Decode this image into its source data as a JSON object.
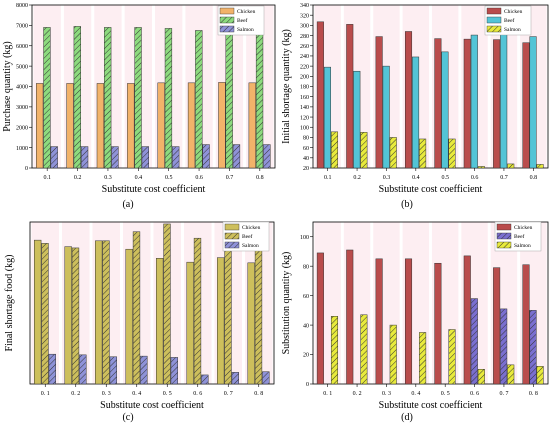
{
  "colors": {
    "chicken": "#f2b36a",
    "chicken_alt": "#cdbf5c",
    "beef": "#8ddb7e",
    "beef_alt": "#b94c4c",
    "salmon": "#8f92d8",
    "salmon_alt": "#e8ea3c",
    "sat_a": "#7a6fd0",
    "sat_b": "#53c4d6"
  },
  "chart_data": [
    {
      "id": "a",
      "type": "bar",
      "panel_label": "(a)",
      "title": "",
      "xlabel": "Substitute cost coefficient",
      "ylabel": "Purchase quantity (kg)",
      "ylim": [
        0,
        8000
      ],
      "yticks": [
        "0",
        "1000",
        "2000",
        "3000",
        "4000",
        "5000",
        "6000",
        "7000",
        "8000"
      ],
      "categories": [
        "0.1",
        "0.2",
        "0.3",
        "0.4",
        "0.5",
        "0.6",
        "0.7",
        "0.8"
      ],
      "legend_position": "top-right",
      "grid": false,
      "series": [
        {
          "name": "Chicken",
          "values": [
            4150,
            4150,
            4150,
            4150,
            4180,
            4180,
            4200,
            4180
          ]
        },
        {
          "name": "Beef",
          "values": [
            6900,
            6950,
            6900,
            6900,
            6850,
            6750,
            6750,
            6750
          ]
        },
        {
          "name": "Salmon",
          "values": [
            1050,
            1050,
            1050,
            1050,
            1050,
            1150,
            1150,
            1150
          ]
        }
      ]
    },
    {
      "id": "b",
      "type": "bar",
      "panel_label": "(b)",
      "title": "",
      "xlabel": "Substitute cost coefficient",
      "ylabel": "Initial shortage quantity (kg)",
      "ylim": [
        20,
        340
      ],
      "yticks": [
        "20",
        "40",
        "60",
        "80",
        "100",
        "120",
        "140",
        "160",
        "180",
        "200",
        "220",
        "240",
        "260",
        "280",
        "300",
        "320",
        "340"
      ],
      "categories": [
        "0.1",
        "0.2",
        "0.3",
        "0.4",
        "0.5",
        "0.6",
        "0.7",
        "0.8"
      ],
      "legend_position": "top-right",
      "grid": false,
      "series": [
        {
          "name": "Chicken",
          "values": [
            307,
            302,
            278,
            288,
            274,
            273,
            272,
            266
          ]
        },
        {
          "name": "Beef",
          "values": [
            218,
            210,
            220,
            238,
            248,
            281,
            283,
            278
          ]
        },
        {
          "name": "Salmon",
          "values": [
            91,
            90,
            80,
            77,
            77,
            23,
            28,
            27
          ]
        }
      ]
    },
    {
      "id": "c",
      "type": "bar",
      "panel_label": "(c)",
      "title": "",
      "xlabel": "Substitute cost coefficient",
      "ylabel": "Final shortage food (kg)",
      "ylim": [
        0,
        250
      ],
      "yticks": [],
      "categories": [
        "0. 1",
        "0. 2",
        "0. 3",
        "0. 4",
        "0. 5",
        "0. 6",
        "0. 7",
        "0. 8"
      ],
      "legend_position": "top-right",
      "grid": false,
      "series": [
        {
          "name": "Chicken",
          "values": [
            222,
            212,
            221,
            208,
            194,
            188,
            195,
            187
          ]
        },
        {
          "name": "Beef",
          "values": [
            217,
            210,
            221,
            235,
            247,
            225,
            233,
            230
          ]
        },
        {
          "name": "Salmon",
          "values": [
            46,
            45,
            42,
            43,
            41,
            14,
            18,
            19
          ]
        }
      ]
    },
    {
      "id": "d",
      "type": "bar",
      "panel_label": "(d)",
      "title": "",
      "xlabel": "Substitute cost coefficient",
      "ylabel": "Substitution quantity (kg)",
      "ylim": [
        0,
        110
      ],
      "yticks": [
        "0",
        "20",
        "40",
        "60",
        "80",
        "100"
      ],
      "categories": [
        "0. 1",
        "0. 2",
        "0. 3",
        "0. 4",
        "0. 5",
        "0. 6",
        "0. 7",
        "0. 8"
      ],
      "legend_position": "top-right",
      "grid": false,
      "series": [
        {
          "name": "Chicken",
          "values": [
            89,
            91,
            85,
            85,
            82,
            87,
            79,
            81
          ]
        },
        {
          "name": "Beef",
          "values": [
            0,
            0,
            0,
            0,
            0,
            58,
            51,
            50
          ]
        },
        {
          "name": "Salmon",
          "values": [
            46,
            47,
            40,
            35,
            37,
            10,
            13,
            12
          ]
        }
      ]
    }
  ]
}
